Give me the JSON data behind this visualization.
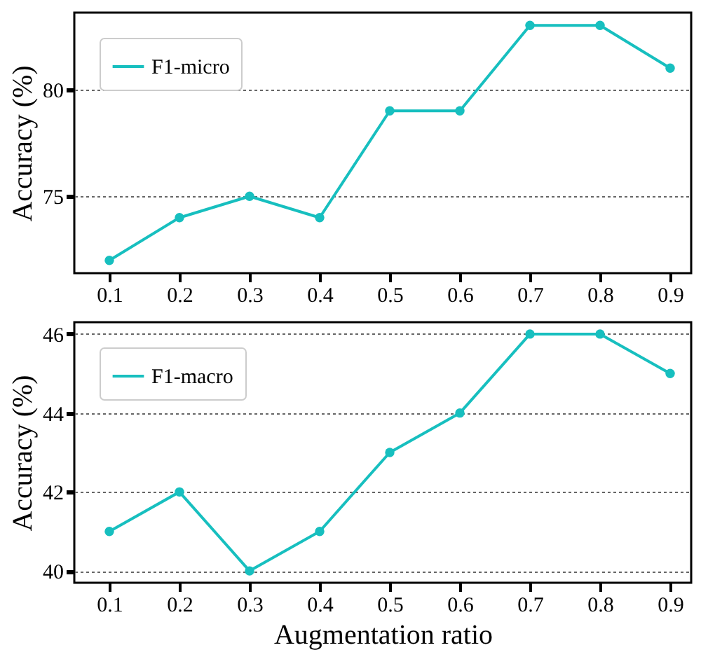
{
  "chart_data": [
    {
      "type": "line",
      "ylabel": "Accuracy (%)",
      "x": [
        0.1,
        0.2,
        0.3,
        0.4,
        0.5,
        0.6,
        0.7,
        0.8,
        0.9
      ],
      "series": [
        {
          "name": "F1-micro",
          "color": "#17bfbf",
          "values": [
            72,
            74,
            75,
            74,
            79,
            79,
            83,
            83,
            81
          ]
        }
      ],
      "xlim": [
        0.05,
        0.93
      ],
      "xticks": [
        0.1,
        0.2,
        0.3,
        0.4,
        0.5,
        0.6,
        0.7,
        0.8,
        0.9
      ],
      "ylim": [
        71.4,
        83.6
      ],
      "yticks": [
        75,
        80
      ],
      "grid": "y",
      "legend": "top left",
      "marker": "circle",
      "line_style": "solid"
    },
    {
      "type": "line",
      "xlabel": "Augmentation ratio",
      "ylabel": "Accuracy (%)",
      "x": [
        0.1,
        0.2,
        0.3,
        0.4,
        0.5,
        0.6,
        0.7,
        0.8,
        0.9
      ],
      "series": [
        {
          "name": "F1-macro",
          "color": "#17bfbf",
          "values": [
            41,
            42,
            40,
            41,
            43,
            44,
            46,
            46,
            45
          ]
        }
      ],
      "xlim": [
        0.05,
        0.93
      ],
      "xticks": [
        0.1,
        0.2,
        0.3,
        0.4,
        0.5,
        0.6,
        0.7,
        0.8,
        0.9
      ],
      "ylim": [
        39.7,
        46.3
      ],
      "yticks": [
        40,
        42,
        44,
        46
      ],
      "grid": "y",
      "legend": "top left",
      "marker": "circle",
      "line_style": "solid"
    }
  ]
}
